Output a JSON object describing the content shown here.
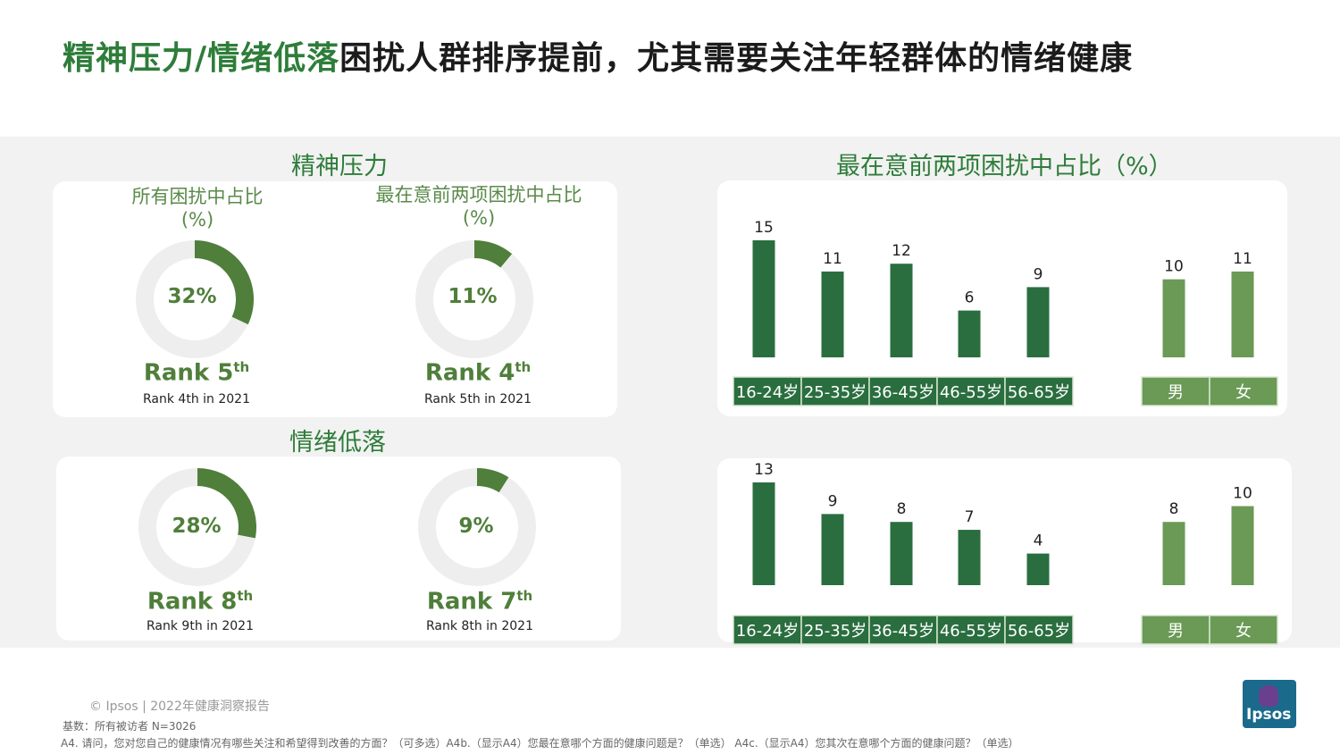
{
  "title": {
    "highlight": "精神压力/情绪低落",
    "rest": "困扰人群排序提前，尤其需要关注年轻群体的情绪健康"
  },
  "left": {
    "section1": {
      "title": "精神压力",
      "items": [
        {
          "subtitle_line1": "所有困扰中占比",
          "subtitle_line2": "(%)",
          "value": 32,
          "label": "32%",
          "rank_main": "Rank 5",
          "rank_sup": "th",
          "rank_prev": "Rank 4th in 2021"
        },
        {
          "subtitle_line1": "最在意前两项困扰中占比",
          "subtitle_line2": "(%)",
          "value": 11,
          "label": "11%",
          "rank_main": "Rank 4",
          "rank_sup": "th",
          "rank_prev": "Rank 5th in 2021"
        }
      ]
    },
    "section2": {
      "title": "情绪低落",
      "items": [
        {
          "value": 28,
          "label": "28%",
          "rank_main": "Rank 8",
          "rank_sup": "th",
          "rank_prev": "Rank 9th in 2021"
        },
        {
          "value": 9,
          "label": "9%",
          "rank_main": "Rank 7",
          "rank_sup": "th",
          "rank_prev": "Rank 8th in 2021"
        }
      ]
    }
  },
  "right": {
    "title": "最在意前两项困扰中占比（%）"
  },
  "chart_data": [
    {
      "type": "bar",
      "categories": [
        "16-24岁",
        "25-35岁",
        "36-45岁",
        "46-55岁",
        "56-65岁",
        "男",
        "女"
      ],
      "values": [
        15,
        11,
        12,
        6,
        9,
        10,
        11
      ],
      "ylim": [
        0,
        15
      ]
    },
    {
      "type": "bar",
      "categories": [
        "16-24岁",
        "25-35岁",
        "36-45岁",
        "46-55岁",
        "56-65岁",
        "男",
        "女"
      ],
      "values": [
        13,
        9,
        8,
        7,
        4,
        8,
        10
      ],
      "ylim": [
        0,
        13
      ]
    }
  ],
  "colors": {
    "accent": "#2E7D3A",
    "age_bar": "#2a6e3f",
    "gender_bar": "#6a9a55",
    "donut_fill": "#4f7f3a",
    "donut_track": "#eeeeee"
  },
  "footer": {
    "copyright": "© Ipsos | 2022年健康洞察报告",
    "base": "基数：所有被访者  N=3026",
    "question": "A4. 请问，您对您自己的健康情况有哪些关注和希望得到改善的方面？（可多选）A4b.（显示A4）您最在意哪个方面的健康问题是？（单选） A4c.（显示A4）您其次在意哪个方面的健康问题？（单选）"
  },
  "logo": {
    "text": "Ipsos"
  }
}
